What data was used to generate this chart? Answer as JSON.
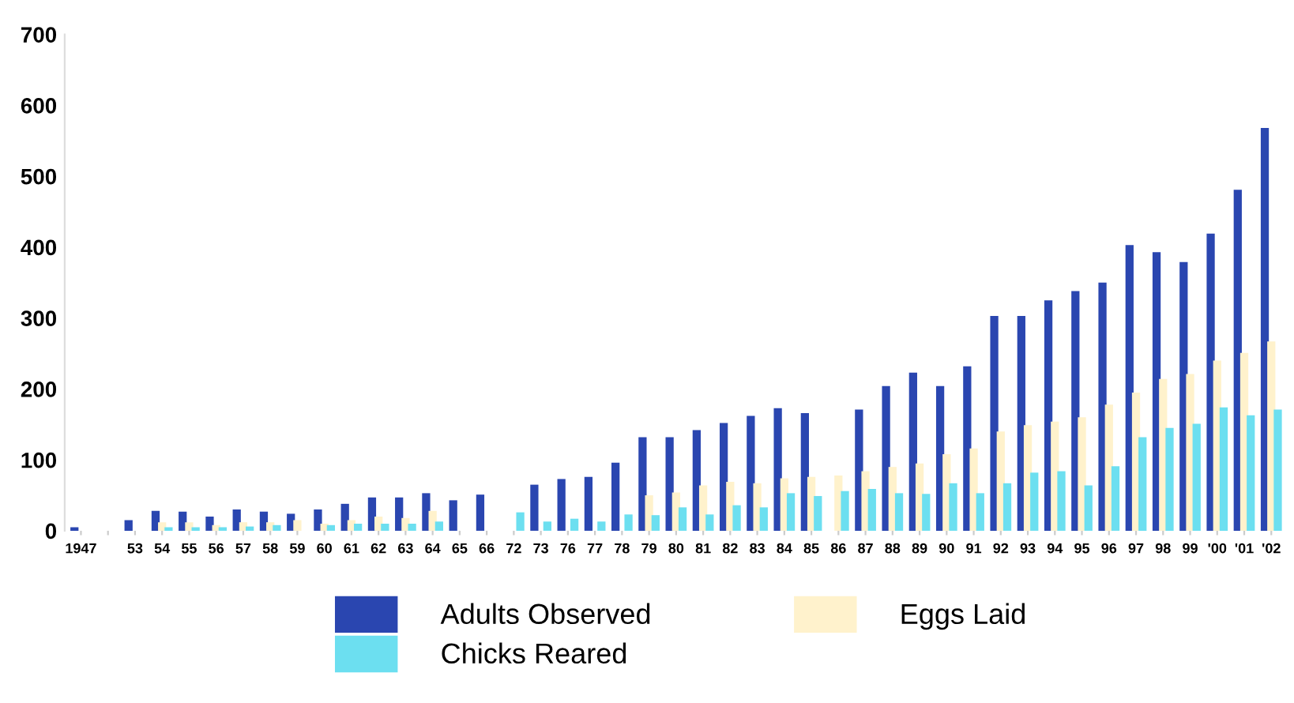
{
  "chart_data": {
    "type": "bar",
    "categories": [
      "1947",
      null,
      "53",
      "54",
      "55",
      "56",
      "57",
      "58",
      "59",
      "60",
      "61",
      "62",
      "63",
      "64",
      "65",
      "66",
      "72",
      "73",
      "76",
      "77",
      "78",
      "79",
      "80",
      "81",
      "82",
      "83",
      "84",
      "85",
      "86",
      "87",
      "88",
      "89",
      "90",
      "91",
      "92",
      "93",
      "94",
      "95",
      "96",
      "97",
      "98",
      "99",
      "'00",
      "'01",
      "'02"
    ],
    "series": [
      {
        "name": "Adults Observed",
        "color": "#2a46b0",
        "values": [
          5,
          null,
          15,
          28,
          27,
          20,
          30,
          27,
          24,
          30,
          38,
          47,
          47,
          53,
          43,
          51,
          null,
          65,
          73,
          76,
          96,
          132,
          132,
          142,
          152,
          162,
          173,
          166,
          null,
          171,
          204,
          223,
          204,
          232,
          303,
          303,
          325,
          338,
          350,
          403,
          393,
          379,
          419,
          481,
          568
        ]
      },
      {
        "name": "Eggs Laid",
        "color": "#fff2cc",
        "values": [
          null,
          null,
          null,
          12,
          12,
          8,
          12,
          12,
          15,
          10,
          15,
          20,
          18,
          28,
          null,
          null,
          null,
          null,
          null,
          null,
          null,
          50,
          54,
          64,
          69,
          67,
          74,
          76,
          78,
          84,
          90,
          95,
          108,
          116,
          140,
          149,
          154,
          160,
          178,
          195,
          214,
          221,
          240,
          251,
          267
        ]
      },
      {
        "name": "Chicks Reared",
        "color": "#6cdff0",
        "values": [
          null,
          null,
          null,
          5,
          5,
          5,
          6,
          8,
          null,
          8,
          10,
          10,
          10,
          13,
          null,
          null,
          26,
          13,
          17,
          13,
          23,
          22,
          33,
          23,
          36,
          33,
          53,
          49,
          56,
          59,
          53,
          52,
          67,
          53,
          67,
          82,
          84,
          64,
          91,
          132,
          145,
          151,
          174,
          163,
          171
        ]
      }
    ],
    "ylim": [
      0,
      700
    ],
    "yticks": [
      0,
      100,
      200,
      300,
      400,
      500,
      600,
      700
    ],
    "grid": false,
    "legend": "bottom"
  }
}
